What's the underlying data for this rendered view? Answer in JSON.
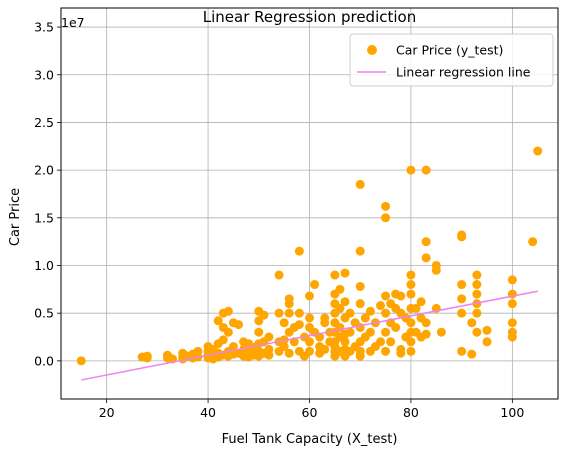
{
  "chart_data": {
    "type": "scatter",
    "title": "Linear Regression prediction",
    "xlabel": "Fuel Tank Capacity (X_test)",
    "ylabel": "Car Price",
    "y_offset_text": "1e7",
    "xlim": [
      11,
      109
    ],
    "ylim": [
      -0.4,
      3.7
    ],
    "x_ticks": [
      20,
      40,
      60,
      80,
      100
    ],
    "x_tick_labels": [
      "20",
      "40",
      "60",
      "80",
      "100"
    ],
    "y_ticks": [
      0.0,
      0.5,
      1.0,
      1.5,
      2.0,
      2.5,
      3.0,
      3.5
    ],
    "y_tick_labels": [
      "0.0",
      "0.5",
      "1.0",
      "1.5",
      "2.0",
      "2.5",
      "3.0",
      "3.5"
    ],
    "grid": true,
    "legend_position": "top-right",
    "colors": {
      "points": "#ffa500",
      "line": "#ee82ee",
      "grid": "#b0b0b0",
      "axes": "#000000"
    },
    "series": [
      {
        "name": "Car Price (y_test)",
        "kind": "scatter",
        "unit_note": "values in units of 1e7",
        "points": [
          [
            15,
            0.0
          ],
          [
            27,
            0.04
          ],
          [
            28,
            0.05
          ],
          [
            28,
            0.03
          ],
          [
            32,
            0.03
          ],
          [
            32,
            0.06
          ],
          [
            33,
            0.02
          ],
          [
            35,
            0.04
          ],
          [
            35,
            0.08
          ],
          [
            35,
            0.02
          ],
          [
            36,
            0.05
          ],
          [
            37,
            0.07
          ],
          [
            37,
            0.03
          ],
          [
            38,
            0.1
          ],
          [
            38,
            0.04
          ],
          [
            40,
            0.03
          ],
          [
            40,
            0.06
          ],
          [
            40,
            0.1
          ],
          [
            40,
            0.15
          ],
          [
            41,
            0.05
          ],
          [
            41,
            0.12
          ],
          [
            41,
            0.02
          ],
          [
            42,
            0.04
          ],
          [
            42,
            0.08
          ],
          [
            42,
            0.18
          ],
          [
            42,
            0.42
          ],
          [
            43,
            0.22
          ],
          [
            43,
            0.35
          ],
          [
            43,
            0.06
          ],
          [
            43,
            0.5
          ],
          [
            44,
            0.05
          ],
          [
            44,
            0.1
          ],
          [
            44,
            0.3
          ],
          [
            44,
            0.52
          ],
          [
            45,
            0.07
          ],
          [
            45,
            0.15
          ],
          [
            45,
            0.4
          ],
          [
            46,
            0.08
          ],
          [
            46,
            0.38
          ],
          [
            47,
            0.05
          ],
          [
            47,
            0.12
          ],
          [
            47,
            0.2
          ],
          [
            48,
            0.04
          ],
          [
            48,
            0.1
          ],
          [
            48,
            0.18
          ],
          [
            49,
            0.06
          ],
          [
            49,
            0.14
          ],
          [
            50,
            0.05
          ],
          [
            50,
            0.1
          ],
          [
            50,
            0.18
          ],
          [
            50,
            0.3
          ],
          [
            50,
            0.42
          ],
          [
            50,
            0.52
          ],
          [
            51,
            0.08
          ],
          [
            51,
            0.2
          ],
          [
            51,
            0.48
          ],
          [
            52,
            0.06
          ],
          [
            52,
            0.25
          ],
          [
            52,
            0.12
          ],
          [
            54,
            0.1
          ],
          [
            54,
            0.2
          ],
          [
            54,
            0.5
          ],
          [
            54,
            0.9
          ],
          [
            55,
            0.15
          ],
          [
            55,
            0.22
          ],
          [
            55,
            0.4
          ],
          [
            56,
            0.08
          ],
          [
            56,
            0.3
          ],
          [
            56,
            0.5
          ],
          [
            56,
            0.6
          ],
          [
            56,
            0.65
          ],
          [
            57,
            0.2
          ],
          [
            57,
            0.35
          ],
          [
            58,
            0.1
          ],
          [
            58,
            0.38
          ],
          [
            58,
            1.15
          ],
          [
            58,
            0.5
          ],
          [
            59,
            0.05
          ],
          [
            59,
            0.25
          ],
          [
            60,
            0.1
          ],
          [
            60,
            0.2
          ],
          [
            60,
            0.35
          ],
          [
            60,
            0.45
          ],
          [
            60,
            0.68
          ],
          [
            61,
            0.8
          ],
          [
            61,
            0.3
          ],
          [
            62,
            0.08
          ],
          [
            62,
            0.15
          ],
          [
            62,
            0.25
          ],
          [
            63,
            0.4
          ],
          [
            63,
            0.12
          ],
          [
            63,
            0.45
          ],
          [
            64,
            0.2
          ],
          [
            64,
            0.3
          ],
          [
            65,
            0.05
          ],
          [
            65,
            0.1
          ],
          [
            65,
            0.15
          ],
          [
            65,
            0.2
          ],
          [
            65,
            0.3
          ],
          [
            65,
            0.4
          ],
          [
            65,
            0.5
          ],
          [
            65,
            0.6
          ],
          [
            65,
            0.7
          ],
          [
            65,
            0.9
          ],
          [
            66,
            0.1
          ],
          [
            66,
            0.25
          ],
          [
            66,
            0.35
          ],
          [
            66,
            0.55
          ],
          [
            66,
            0.75
          ],
          [
            67,
            0.05
          ],
          [
            67,
            0.12
          ],
          [
            67,
            0.2
          ],
          [
            67,
            0.28
          ],
          [
            67,
            0.45
          ],
          [
            67,
            0.62
          ],
          [
            67,
            0.92
          ],
          [
            68,
            0.1
          ],
          [
            68,
            0.3
          ],
          [
            68,
            0.5
          ],
          [
            69,
            0.15
          ],
          [
            69,
            0.4
          ],
          [
            70,
            0.05
          ],
          [
            70,
            0.1
          ],
          [
            70,
            0.2
          ],
          [
            70,
            0.35
          ],
          [
            70,
            0.6
          ],
          [
            70,
            1.15
          ],
          [
            70,
            1.85
          ],
          [
            70,
            0.78
          ],
          [
            71,
            0.25
          ],
          [
            71,
            0.45
          ],
          [
            72,
            0.1
          ],
          [
            72,
            0.3
          ],
          [
            72,
            0.52
          ],
          [
            73,
            0.4
          ],
          [
            73,
            0.15
          ],
          [
            74,
            0.2
          ],
          [
            74,
            0.58
          ],
          [
            75,
            0.1
          ],
          [
            75,
            0.3
          ],
          [
            75,
            0.5
          ],
          [
            75,
            0.68
          ],
          [
            75,
            1.5
          ],
          [
            75,
            1.62
          ],
          [
            76,
            0.2
          ],
          [
            76,
            0.4
          ],
          [
            76,
            0.6
          ],
          [
            77,
            0.35
          ],
          [
            77,
            0.55
          ],
          [
            77,
            0.7
          ],
          [
            78,
            0.08
          ],
          [
            78,
            0.12
          ],
          [
            78,
            0.5
          ],
          [
            78,
            0.68
          ],
          [
            79,
            0.25
          ],
          [
            79,
            0.45
          ],
          [
            80,
            0.1
          ],
          [
            80,
            0.2
          ],
          [
            80,
            0.3
          ],
          [
            80,
            0.4
          ],
          [
            80,
            0.55
          ],
          [
            80,
            0.7
          ],
          [
            80,
            0.8
          ],
          [
            80,
            0.9
          ],
          [
            80,
            2.0
          ],
          [
            81,
            0.3
          ],
          [
            81,
            0.55
          ],
          [
            82,
            0.25
          ],
          [
            82,
            0.45
          ],
          [
            82,
            0.62
          ],
          [
            83,
            0.28
          ],
          [
            83,
            0.4
          ],
          [
            83,
            1.08
          ],
          [
            83,
            1.25
          ],
          [
            83,
            2.0
          ],
          [
            85,
            0.55
          ],
          [
            85,
            0.95
          ],
          [
            85,
            1.0
          ],
          [
            86,
            0.3
          ],
          [
            90,
            0.1
          ],
          [
            90,
            0.5
          ],
          [
            90,
            0.65
          ],
          [
            90,
            1.3
          ],
          [
            90,
            1.32
          ],
          [
            90,
            0.8
          ],
          [
            92,
            0.07
          ],
          [
            92,
            0.4
          ],
          [
            93,
            0.3
          ],
          [
            93,
            0.5
          ],
          [
            93,
            0.6
          ],
          [
            93,
            0.7
          ],
          [
            93,
            0.8
          ],
          [
            93,
            0.9
          ],
          [
            95,
            0.2
          ],
          [
            95,
            0.32
          ],
          [
            100,
            0.25
          ],
          [
            100,
            0.3
          ],
          [
            100,
            0.4
          ],
          [
            100,
            0.6
          ],
          [
            100,
            0.7
          ],
          [
            100,
            0.85
          ],
          [
            104,
            1.25
          ],
          [
            105,
            2.2
          ]
        ]
      },
      {
        "name": "Linear regression line",
        "kind": "line",
        "x": [
          15,
          105
        ],
        "y": [
          -0.2,
          0.73
        ]
      }
    ]
  }
}
